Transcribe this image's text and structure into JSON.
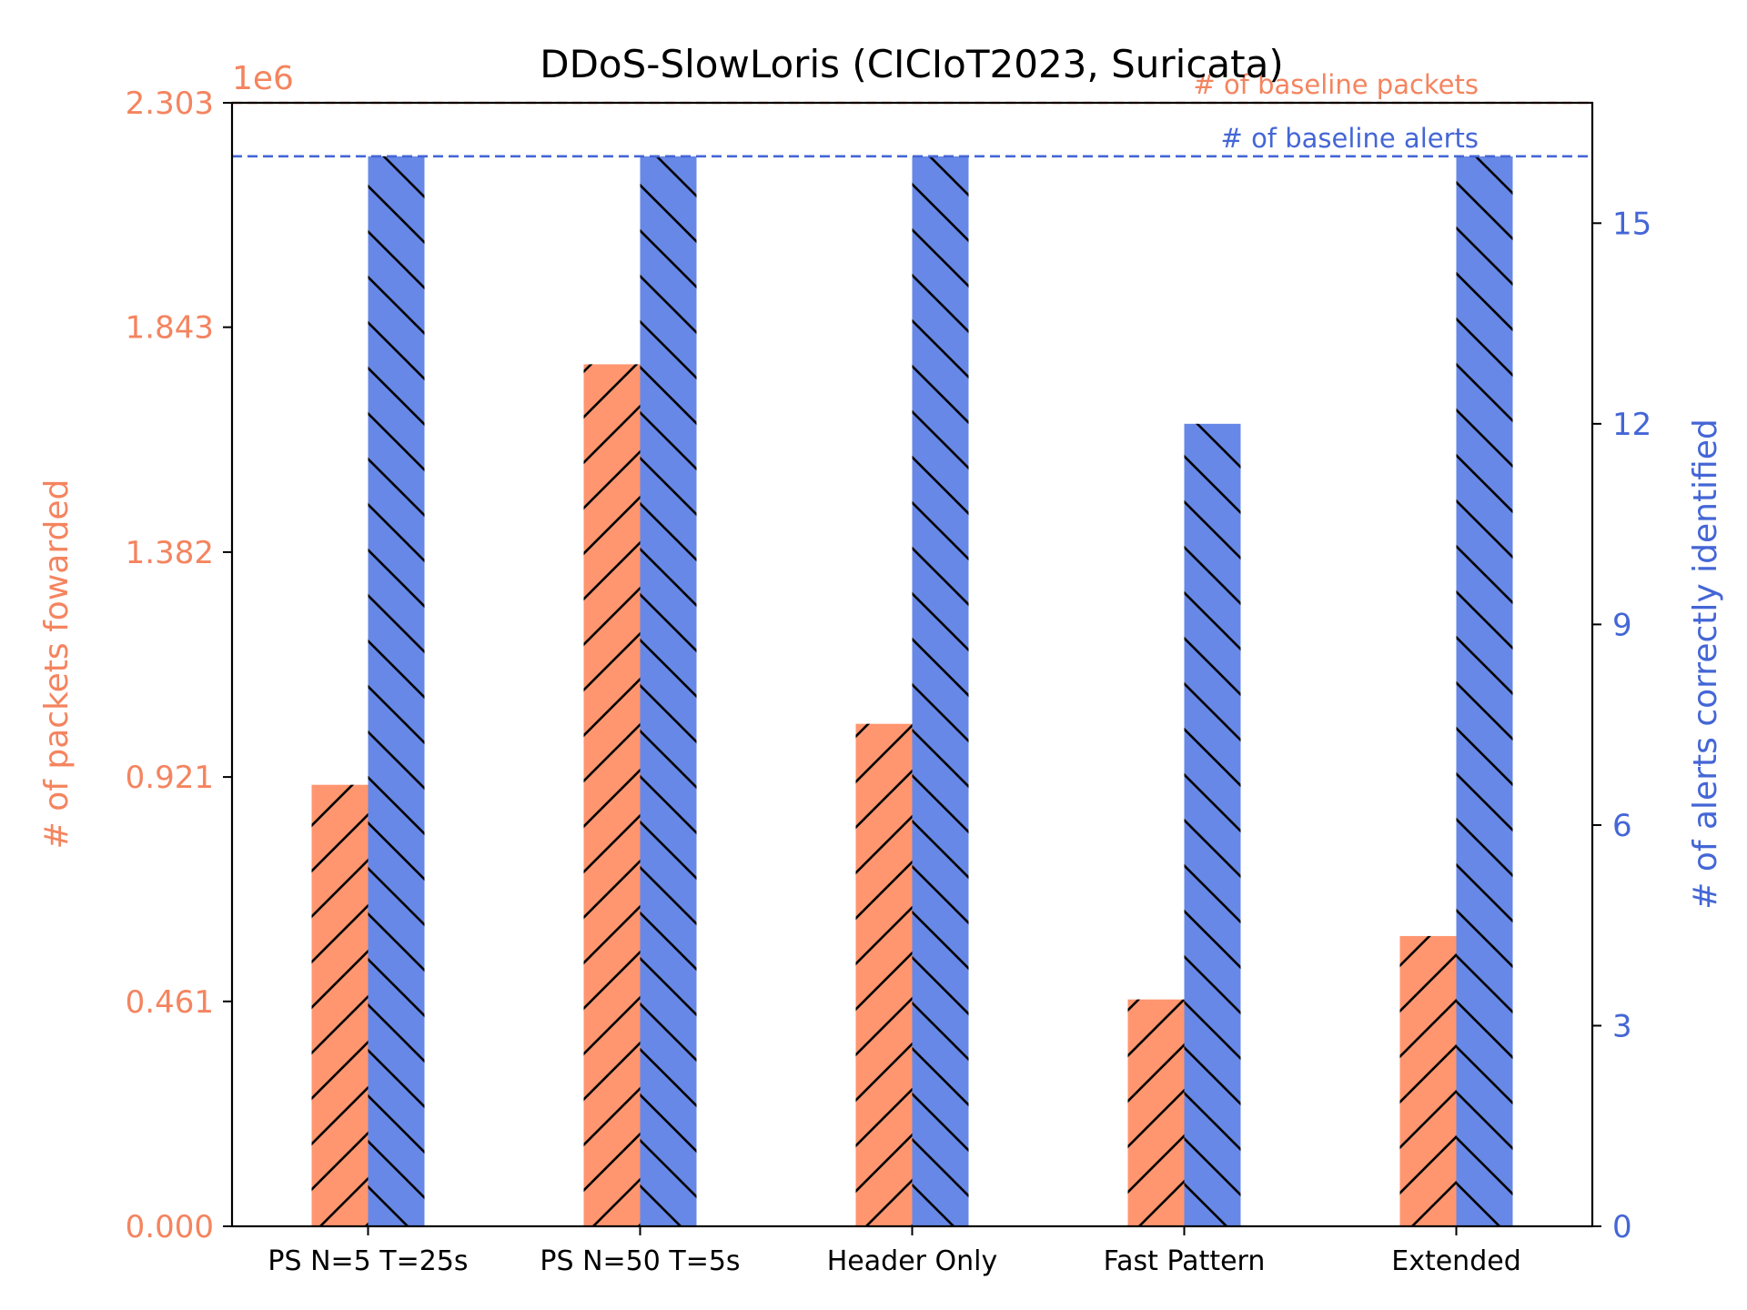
{
  "chart_data": {
    "type": "bar",
    "title": "DDoS-SlowLoris (CICIoT2023, Suricata)",
    "categories": [
      "PS N=5 T=25s",
      "PS N=50 T=5s",
      "Header Only",
      "Fast Pattern",
      "Extended"
    ],
    "y_left": {
      "label": "# of packets fowarded",
      "multiplier_label": "1e6",
      "range": [
        0,
        2.303
      ],
      "ticks": [
        0.0,
        0.461,
        0.921,
        1.382,
        1.843,
        2.303
      ],
      "tick_labels": [
        "0.000",
        "0.461",
        "0.921",
        "1.382",
        "1.843",
        "2.303"
      ],
      "color": "#f4845f"
    },
    "y_right": {
      "label": "# of alerts correctly identified",
      "range": [
        0,
        16.8
      ],
      "ticks": [
        0,
        3,
        6,
        9,
        12,
        15
      ],
      "tick_labels": [
        "0",
        "3",
        "6",
        "9",
        "12",
        "15"
      ],
      "color": "#4466d6"
    },
    "series": [
      {
        "axis": "left",
        "color": "#ff9670",
        "hatch": "forward",
        "values": [
          0.905,
          1.767,
          1.03,
          0.465,
          0.595
        ]
      },
      {
        "axis": "right",
        "color": "#6788e6",
        "hatch": "back",
        "values": [
          16,
          16,
          16,
          12,
          16
        ]
      }
    ],
    "reference_lines": [
      {
        "axis": "left",
        "value": 2.303,
        "label": "# of baseline packets",
        "color": "#f4845f"
      },
      {
        "axis": "right",
        "value": 16,
        "label": "# of baseline alerts",
        "color": "#4466d6"
      }
    ],
    "legend": "none",
    "grid": false
  }
}
